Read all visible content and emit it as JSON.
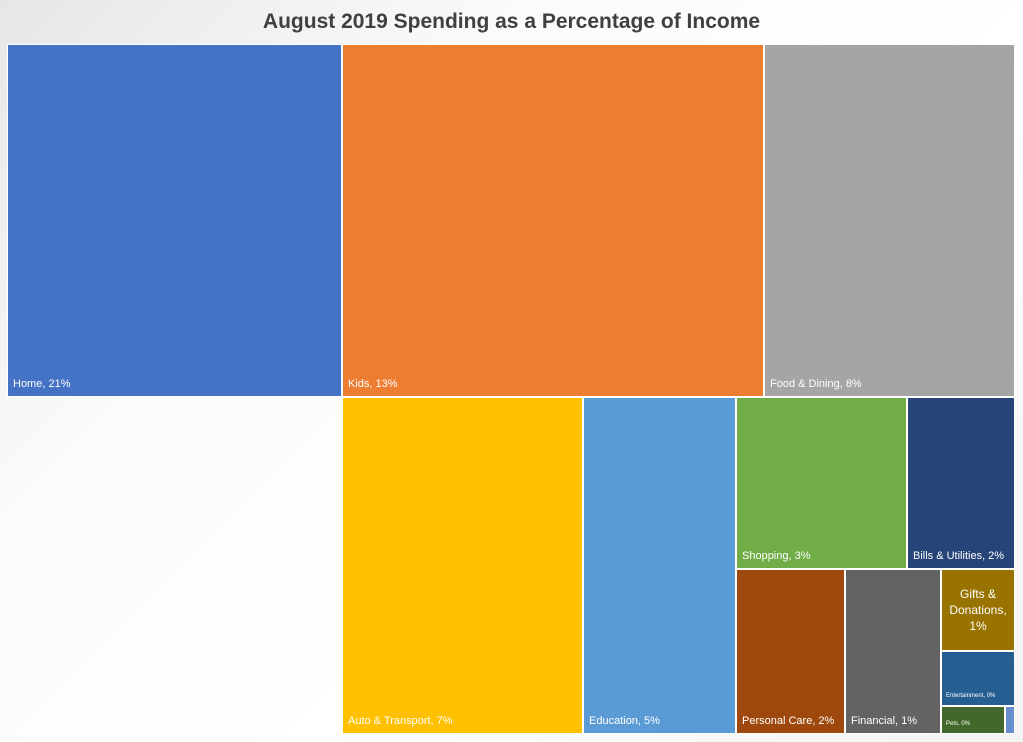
{
  "chart_data": {
    "type": "treemap",
    "title": "August 2019 Spending as a Percentage of Income",
    "unit": "%",
    "items": [
      {
        "name": "Home",
        "value": 21,
        "label": "Home, 21%",
        "color": "#4472C4"
      },
      {
        "name": "Kids",
        "value": 13,
        "label": "Kids, 13%",
        "color": "#ED7D31"
      },
      {
        "name": "Food & Dining",
        "value": 8,
        "label": "Food & Dining, 8%",
        "color": "#A5A5A5"
      },
      {
        "name": "Auto & Transport",
        "value": 7,
        "label": "Auto & Transport, 7%",
        "color": "#FFC000"
      },
      {
        "name": "Education",
        "value": 5,
        "label": "Education, 5%",
        "color": "#5B9BD5"
      },
      {
        "name": "Shopping",
        "value": 3,
        "label": "Shopping, 3%",
        "color": "#70AD47"
      },
      {
        "name": "Bills & Utilities",
        "value": 2,
        "label": "Bills & Utilities, 2%",
        "color": "#264478"
      },
      {
        "name": "Personal Care",
        "value": 2,
        "label": "Personal Care, 2%",
        "color": "#9E480E"
      },
      {
        "name": "Financial",
        "value": 1,
        "label": "Financial, 1%",
        "color": "#636363"
      },
      {
        "name": "Gifts & Donations",
        "value": 1,
        "label": "Gifts & Donations, 1%",
        "color": "#997300"
      },
      {
        "name": "Entertainment",
        "value": 0,
        "label": "Entertainment, 0%",
        "color": "#255E91"
      },
      {
        "name": "Pets",
        "value": 0,
        "label": "Pets, 0%",
        "color": "#43682B"
      },
      {
        "name": "",
        "value": 0,
        "label": "",
        "color": "#698ED0"
      }
    ]
  }
}
